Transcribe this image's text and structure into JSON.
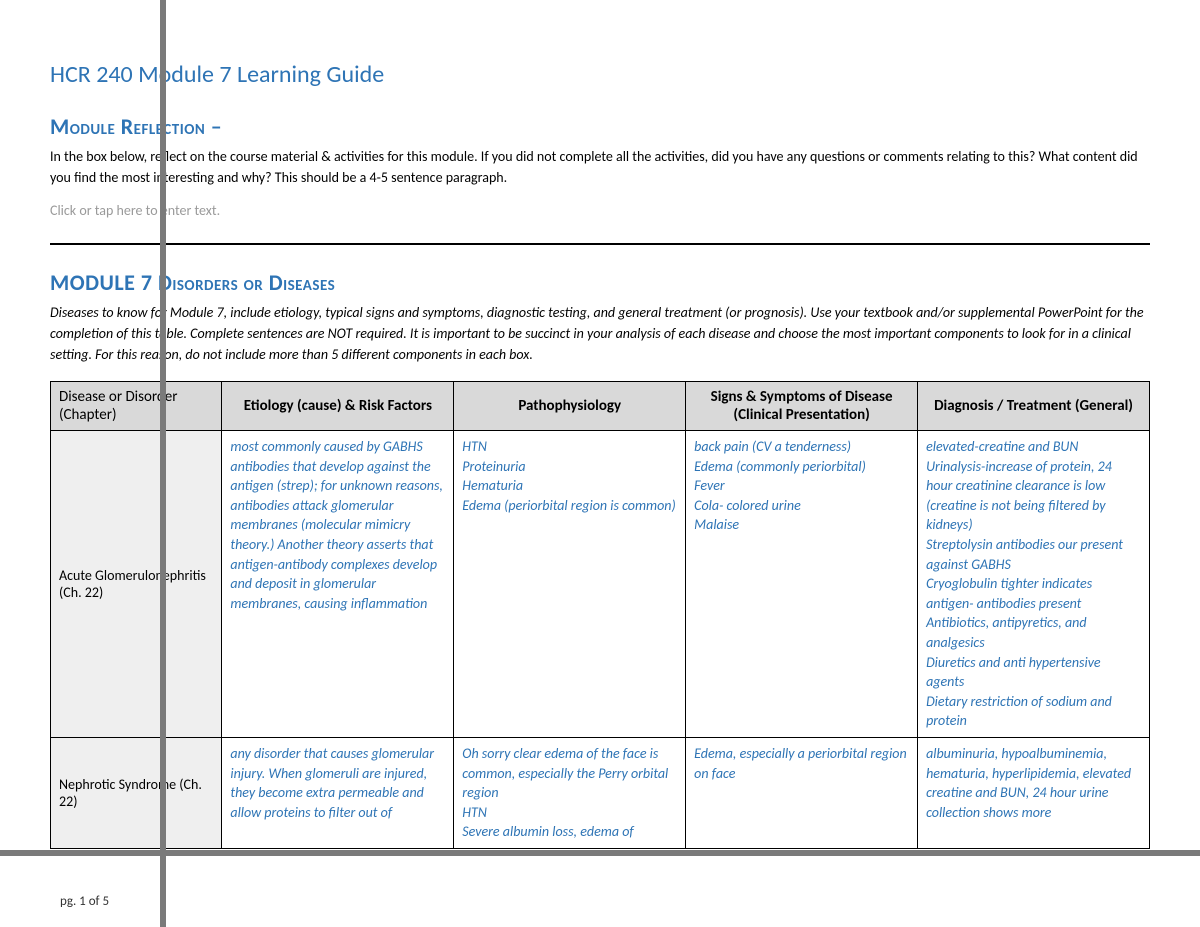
{
  "doc_title": "HCR 240 Module 7 Learning Guide",
  "reflection": {
    "heading": "Module Reflection –",
    "instruction": "In the box below, reflect on the course material & activities for this module.  If you did not complete all the activities, did you have any questions or comments relating to this?  What content did you find the most interesting and why?  This should be a 4-5 sentence paragraph.",
    "placeholder": "Click or tap here to enter text."
  },
  "disorders": {
    "heading": "MODULE 7 Disorders or Diseases",
    "instruction": "Diseases to know for Module 7, include etiology, typical signs and symptoms, diagnostic testing, and general treatment (or prognosis).  Use your textbook and/or supplemental PowerPoint for the completion of this table.  Complete sentences are NOT required.  It is important to be succinct in your analysis of each disease and choose the most important components to look for in a clinical setting. For this reason, do not include more than 5 different components in each box."
  },
  "table": {
    "headers": {
      "c1": "Disease or Disorder (Chapter)",
      "c2": "Etiology (cause) & Risk Factors",
      "c3": "Pathophysiology",
      "c4": "Signs & Symptoms of Disease (Clinical Presentation)",
      "c5": "Diagnosis / Treatment (General)"
    },
    "rows": [
      {
        "label": "Acute Glomerulonephritis (Ch. 22)",
        "etiology": "most commonly caused by GABHS antibodies that develop against the antigen (strep); for unknown reasons, antibodies attack glomerular membranes (molecular mimicry theory.) Another theory asserts that antigen-antibody complexes develop and deposit in glomerular membranes, causing inflammation",
        "patho": "HTN\nProteinuria\nHematuria\nEdema (periorbital region is common)",
        "signs": "back pain (CV a tenderness)\nEdema (commonly periorbital)\nFever\nCola- colored urine\nMalaise",
        "dx": "elevated-creatine and BUN\nUrinalysis-increase of protein, 24 hour creatinine clearance is low (creatine is not being filtered by kidneys)\nStreptolysin antibodies our present against GABHS\nCryoglobulin tighter indicates antigen- antibodies present\nAntibiotics, antipyretics, and analgesics\nDiuretics and anti hypertensive agents\nDietary restriction of sodium and protein"
      },
      {
        "label": "Nephrotic Syndrome (Ch. 22)",
        "etiology": "any disorder that causes glomerular injury. When glomeruli are injured, they become extra permeable and allow proteins to filter out of",
        "patho": "Oh sorry clear edema of the face is common, especially the Perry orbital region\nHTN\nSevere albumin loss, edema of",
        "signs": "Edema, especially a periorbital region on face",
        "dx": "albuminuria, hypoalbuminemia, hematuria, hyperlipidemia, elevated creatine and BUN, 24 hour urine collection shows more"
      }
    ]
  },
  "footer": "pg. 1 of 5",
  "colors": {
    "accent": "#2e74b5",
    "header_bg": "#d9d9d9",
    "rowlabel_bg": "#efefef",
    "overlay_gray": "#7a7a7a"
  }
}
